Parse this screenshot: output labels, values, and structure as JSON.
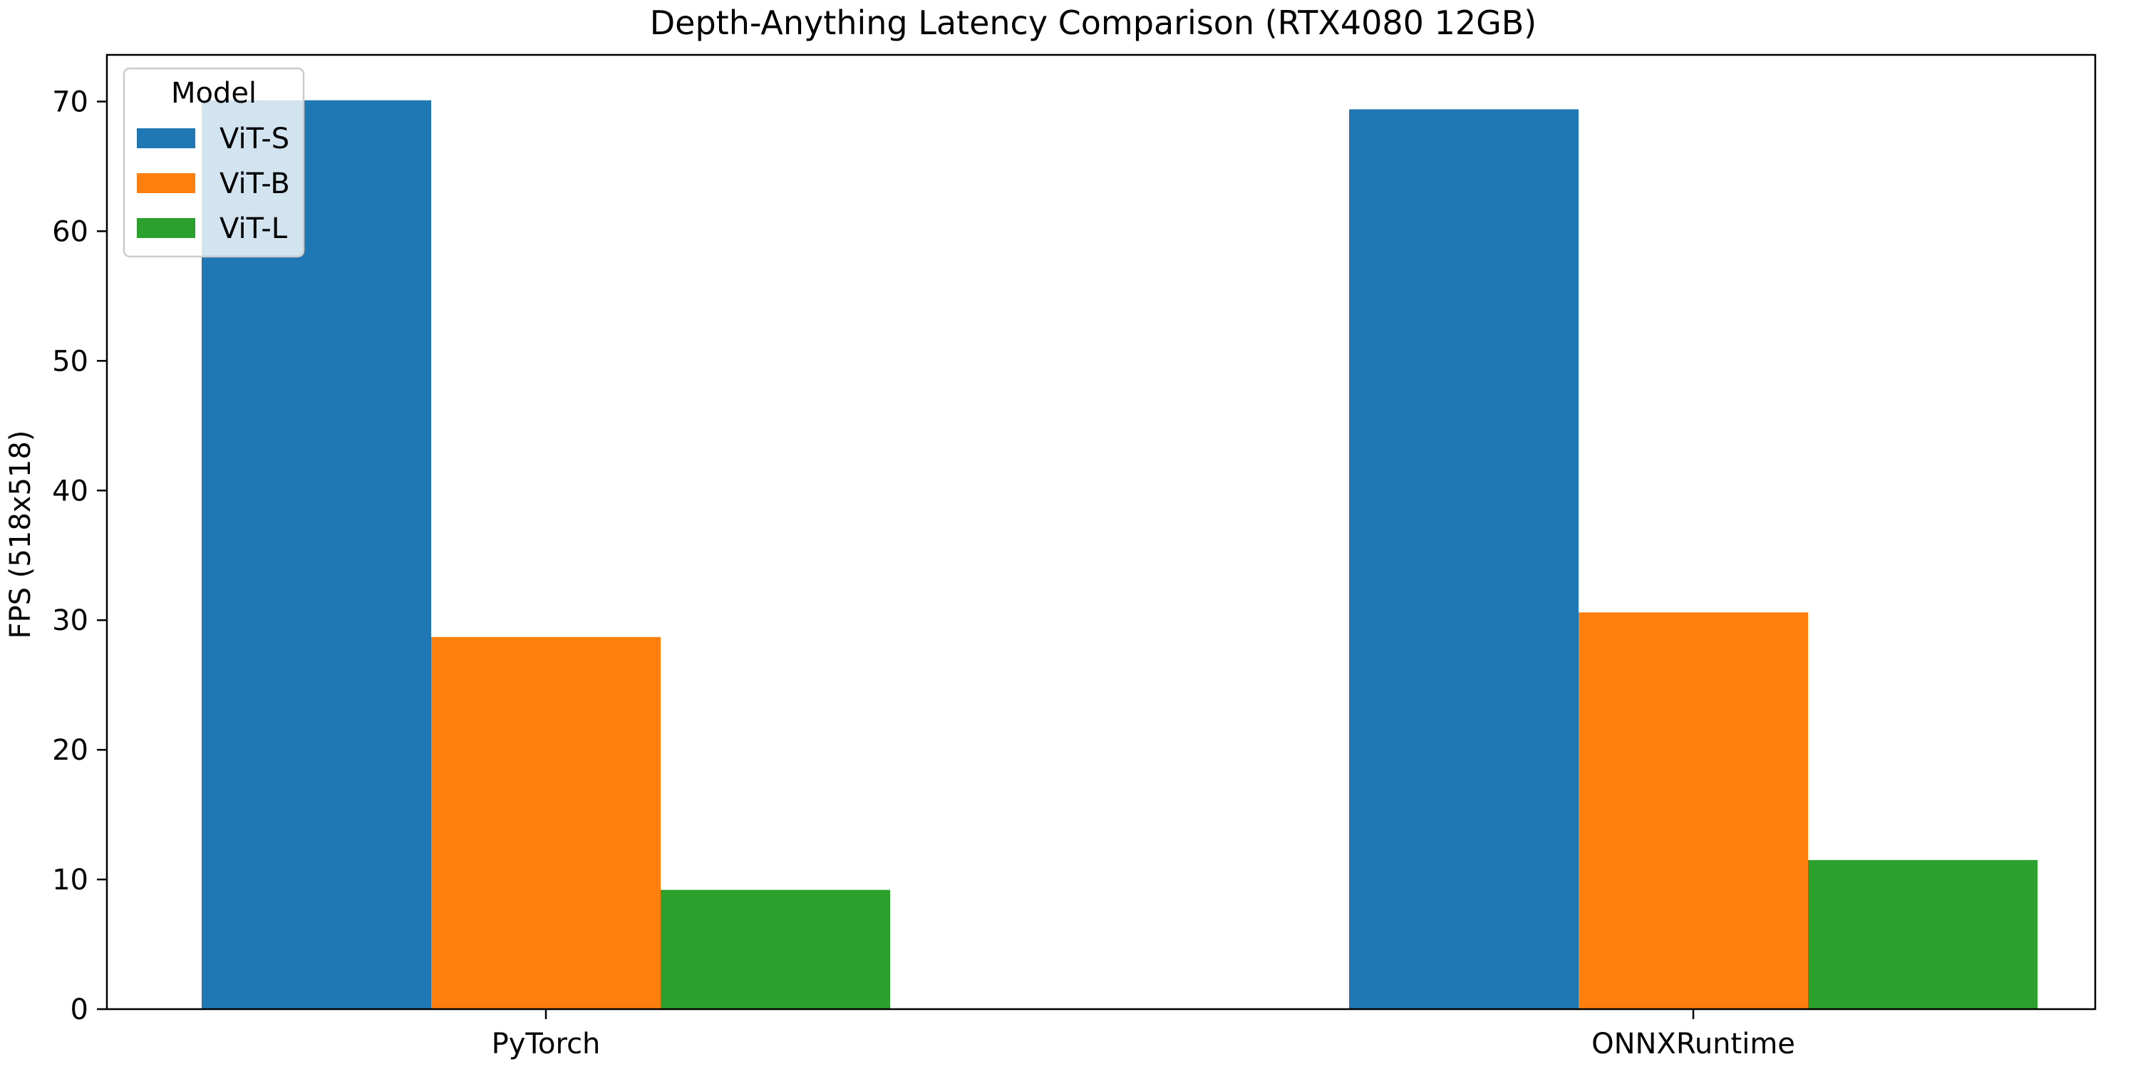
{
  "chart_data": {
    "type": "bar",
    "title": "Depth-Anything Latency Comparison (RTX4080 12GB)",
    "xlabel": "",
    "ylabel": "FPS (518x518)",
    "categories": [
      "PyTorch",
      "ONNXRuntime"
    ],
    "series": [
      {
        "name": "ViT-S",
        "color": "#1f77b4",
        "values": [
          70.1,
          69.4
        ]
      },
      {
        "name": "ViT-B",
        "color": "#ff7f0e",
        "values": [
          28.7,
          30.6
        ]
      },
      {
        "name": "ViT-L",
        "color": "#2ca02c",
        "values": [
          9.2,
          11.5
        ]
      }
    ],
    "ylim": [
      0,
      73.6
    ],
    "yticks": [
      0,
      10,
      20,
      30,
      40,
      50,
      60,
      70
    ],
    "legend": {
      "title": "Model",
      "placement": "top-left"
    },
    "grid": false
  }
}
